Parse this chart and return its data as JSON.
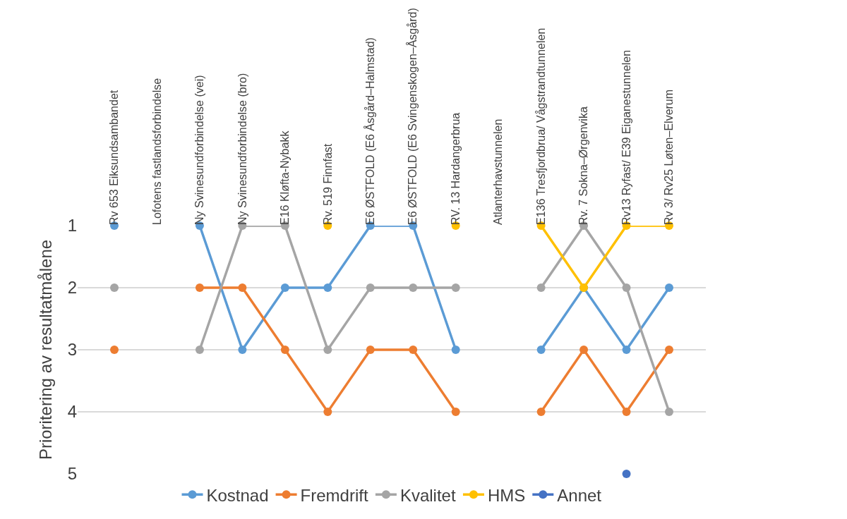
{
  "chart_data": {
    "type": "line",
    "ylabel": "Prioritering av resultatmålene",
    "categories": [
      "Rv 653 Eiksundsambandet",
      "Lofotens fastlandsforbindelse",
      "Ny Svinesundforbindelse (vei)",
      "Ny Svinesundforbindelse (bro)",
      "E16 Kløfta-Nybakk",
      "Rv. 519 Finnfast",
      "E6 ØSTFOLD (E6 Åsgård–Halmstad)",
      "E6 ØSTFOLD (E6 Svingenskogen–Åsgård)",
      "RV. 13 Hardangerbrua",
      "Atlanterhavstunnelen",
      "E136 Tresfjordbrua/ Vågstrandtunnelen",
      "Rv. 7 Sokna–Ørgenvika",
      "Rv13 Ryfast/ E39 Eiganestunnelen",
      "Rv 3/ Rv25 Løten–Elverum"
    ],
    "series": [
      {
        "name": "Kostnad",
        "color": "#5b9bd5",
        "values": [
          1,
          null,
          1,
          3,
          2,
          2,
          1,
          1,
          3,
          null,
          3,
          2,
          3,
          2
        ]
      },
      {
        "name": "Fremdrift",
        "color": "#ed7d31",
        "values": [
          3,
          null,
          2,
          2,
          3,
          4,
          3,
          3,
          4,
          null,
          4,
          3,
          4,
          3
        ]
      },
      {
        "name": "Kvalitet",
        "color": "#a5a5a5",
        "values": [
          2,
          null,
          3,
          1,
          1,
          3,
          2,
          2,
          2,
          null,
          2,
          1,
          2,
          4
        ]
      },
      {
        "name": "HMS",
        "color": "#ffc000",
        "values": [
          null,
          null,
          null,
          null,
          null,
          1,
          null,
          null,
          1,
          null,
          1,
          2,
          1,
          1
        ]
      },
      {
        "name": "Annet",
        "color": "#4472c4",
        "values": [
          null,
          null,
          null,
          null,
          null,
          null,
          null,
          null,
          null,
          null,
          null,
          null,
          5,
          null
        ]
      }
    ],
    "ylim": [
      5,
      1
    ],
    "yticks": [
      1,
      2,
      3,
      4,
      5
    ],
    "grid": "y",
    "legend": "bottom",
    "marker": "circle",
    "line_style": "solid"
  }
}
